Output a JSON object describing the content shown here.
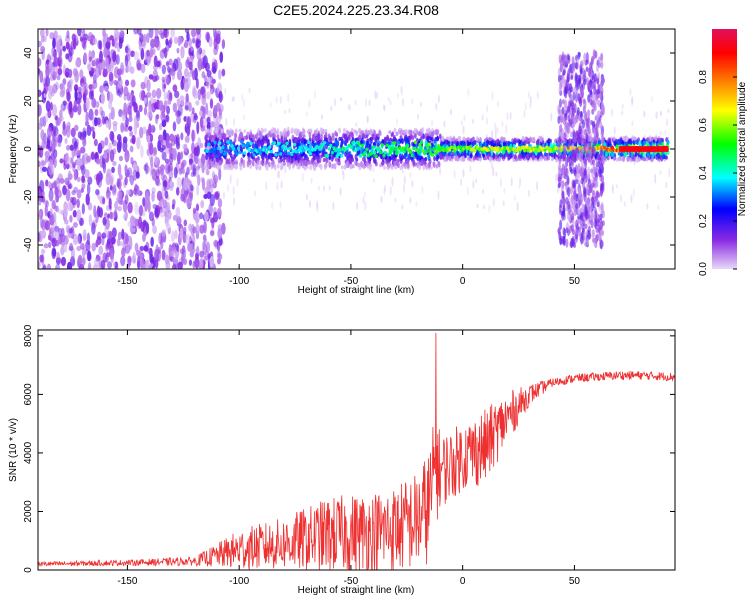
{
  "title": "C2E5.2024.225.23.34.R08",
  "chart_data": [
    {
      "type": "heatmap",
      "xlabel": "Height of straight line (km)",
      "ylabel": "Frequency (Hz)",
      "xlim": [
        -190,
        95
      ],
      "ylim": [
        -50,
        50
      ],
      "xticks": [
        -150,
        -100,
        -50,
        0,
        50
      ],
      "yticks": [
        -40,
        -20,
        0,
        20,
        40
      ],
      "colorbar": {
        "label": "Normalized spectral amplitude",
        "range": [
          0,
          1
        ],
        "ticks": [
          0.0,
          0.2,
          0.4,
          0.6,
          0.8
        ],
        "colormap": [
          "#e8d8f8",
          "#8a2be2",
          "#0000ff",
          "#00ffff",
          "#00ff00",
          "#ffff00",
          "#ff8000",
          "#ff0000",
          "#e0105a"
        ]
      },
      "regions": [
        {
          "x": [
            -190,
            -107
          ],
          "freq_halfwidth": 50,
          "amplitude": 0.15
        },
        {
          "x": [
            -115,
            92
          ],
          "center_freq": 0,
          "freq_halfwidth": 7,
          "amplitude": 0.35
        },
        {
          "x": [
            43,
            63
          ],
          "freq_halfwidth": 40,
          "amplitude": 0.2
        }
      ],
      "ridge": [
        {
          "x": -115,
          "amp": 0.32
        },
        {
          "x": -60,
          "amp": 0.4
        },
        {
          "x": -20,
          "amp": 0.5
        },
        {
          "x": 10,
          "amp": 0.6
        },
        {
          "x": 40,
          "amp": 0.6
        },
        {
          "x": 70,
          "amp": 0.8
        },
        {
          "x": 92,
          "amp": 0.95
        }
      ]
    },
    {
      "type": "line",
      "xlabel": "Height of straight line (km)",
      "ylabel": "SNR (10 * v/v)",
      "xlim": [
        -190,
        95
      ],
      "ylim": [
        0,
        8200
      ],
      "xticks": [
        -150,
        -100,
        -50,
        0,
        50
      ],
      "yticks": [
        0,
        2000,
        4000,
        6000,
        8000
      ],
      "color": "#ee3030",
      "envelope": {
        "x": [
          -190,
          -150,
          -120,
          -110,
          -100,
          -80,
          -60,
          -40,
          -30,
          -20,
          -15,
          -12,
          -10,
          -5,
          0,
          10,
          20,
          30,
          40,
          50,
          60,
          70,
          80,
          95
        ],
        "mean": [
          200,
          250,
          300,
          500,
          700,
          900,
          1200,
          1300,
          1400,
          1700,
          2200,
          3500,
          3400,
          3600,
          3900,
          4200,
          5200,
          6000,
          6400,
          6550,
          6600,
          6650,
          6650,
          6600
        ],
        "spread": [
          80,
          100,
          150,
          400,
          700,
          900,
          1300,
          1400,
          1500,
          1700,
          2000,
          2000,
          1300,
          1200,
          1200,
          1300,
          900,
          350,
          150,
          150,
          150,
          150,
          150,
          150
        ]
      },
      "peak": {
        "x": -12,
        "y": 8100
      }
    }
  ]
}
